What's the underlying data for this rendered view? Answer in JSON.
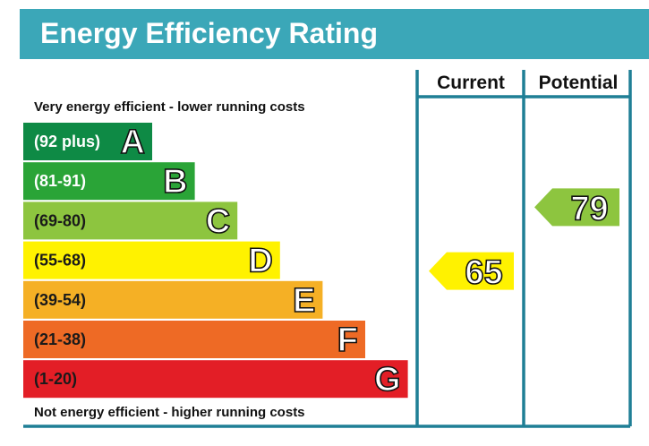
{
  "header": {
    "title": "Energy Efficiency Rating",
    "banner_color": "#3BA7B8"
  },
  "labels": {
    "top_note": "Very energy efficient - lower running costs",
    "bottom_note": "Not energy efficient - higher running costs"
  },
  "chart_data": {
    "type": "bar",
    "title": "Energy Efficiency Rating",
    "columns": [
      "Current",
      "Potential"
    ],
    "frame_color": "#1F7F95",
    "bands": [
      {
        "letter": "A",
        "range": "(92 plus)",
        "color": "#0E8A45",
        "text_color": "#ffffff"
      },
      {
        "letter": "B",
        "range": "(81-91)",
        "color": "#2AA437",
        "text_color": "#ffffff"
      },
      {
        "letter": "C",
        "range": "(69-80)",
        "color": "#8DC53F",
        "text_color": "#1a1a1a"
      },
      {
        "letter": "D",
        "range": "(55-68)",
        "color": "#FFF200",
        "text_color": "#1a1a1a"
      },
      {
        "letter": "E",
        "range": "(39-54)",
        "color": "#F5B025",
        "text_color": "#1a1a1a"
      },
      {
        "letter": "F",
        "range": "(21-38)",
        "color": "#EE6A25",
        "text_color": "#1a1a1a"
      },
      {
        "letter": "G",
        "range": "(1-20)",
        "color": "#E31E26",
        "text_color": "#1a1a1a"
      }
    ],
    "ratings": [
      {
        "column": "Current",
        "value": 65,
        "band": "D",
        "color": "#FFF200"
      },
      {
        "column": "Potential",
        "value": 79,
        "band": "C",
        "color": "#8DC53F"
      }
    ]
  }
}
